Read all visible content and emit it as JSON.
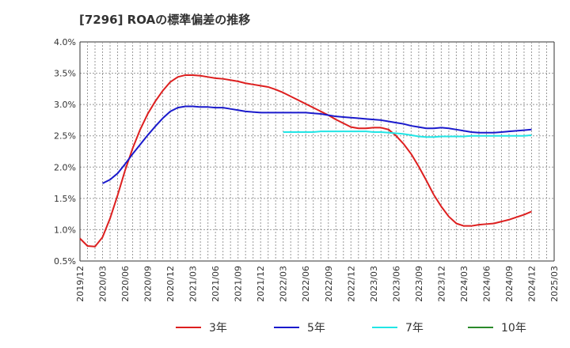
{
  "chart_data": {
    "type": "line",
    "title": "[7296]  ROAの標準偏差の推移",
    "xlabel": "",
    "ylabel": "",
    "y_range": [
      0.5,
      4.0
    ],
    "y_ticks": [
      0.5,
      1.0,
      1.5,
      2.0,
      2.5,
      3.0,
      3.5,
      4.0
    ],
    "y_tick_labels": [
      "0.5%",
      "1.0%",
      "1.5%",
      "2.0%",
      "2.5%",
      "3.0%",
      "3.5%",
      "4.0%"
    ],
    "x_range": [
      "2019/12",
      "2025/03"
    ],
    "x_tick_labels": [
      "2019/12",
      "2020/03",
      "2020/06",
      "2020/09",
      "2020/12",
      "2021/03",
      "2021/06",
      "2021/09",
      "2021/12",
      "2022/03",
      "2022/06",
      "2022/09",
      "2022/12",
      "2023/03",
      "2023/06",
      "2023/09",
      "2023/12",
      "2024/03",
      "2024/06",
      "2024/09",
      "2024/12",
      "2025/03"
    ],
    "grid": true,
    "legend_position": "bottom",
    "series": [
      {
        "name": "3年",
        "color": "#dd1f1f",
        "points": [
          [
            "2019/12",
            0.86
          ],
          [
            "2020/01",
            0.74
          ],
          [
            "2020/02",
            0.73
          ],
          [
            "2020/03",
            0.88
          ],
          [
            "2020/04",
            1.18
          ],
          [
            "2020/05",
            1.55
          ],
          [
            "2020/06",
            1.95
          ],
          [
            "2020/07",
            2.3
          ],
          [
            "2020/08",
            2.6
          ],
          [
            "2020/09",
            2.85
          ],
          [
            "2020/10",
            3.05
          ],
          [
            "2020/11",
            3.22
          ],
          [
            "2020/12",
            3.36
          ],
          [
            "2021/01",
            3.44
          ],
          [
            "2021/02",
            3.47
          ],
          [
            "2021/03",
            3.47
          ],
          [
            "2021/04",
            3.46
          ],
          [
            "2021/05",
            3.44
          ],
          [
            "2021/06",
            3.42
          ],
          [
            "2021/07",
            3.41
          ],
          [
            "2021/08",
            3.39
          ],
          [
            "2021/09",
            3.37
          ],
          [
            "2021/10",
            3.34
          ],
          [
            "2021/11",
            3.32
          ],
          [
            "2021/12",
            3.3
          ],
          [
            "2022/01",
            3.28
          ],
          [
            "2022/02",
            3.24
          ],
          [
            "2022/03",
            3.19
          ],
          [
            "2022/04",
            3.13
          ],
          [
            "2022/05",
            3.07
          ],
          [
            "2022/06",
            3.01
          ],
          [
            "2022/07",
            2.95
          ],
          [
            "2022/08",
            2.89
          ],
          [
            "2022/09",
            2.83
          ],
          [
            "2022/10",
            2.76
          ],
          [
            "2022/11",
            2.7
          ],
          [
            "2022/12",
            2.64
          ],
          [
            "2023/01",
            2.62
          ],
          [
            "2023/02",
            2.62
          ],
          [
            "2023/03",
            2.63
          ],
          [
            "2023/04",
            2.63
          ],
          [
            "2023/05",
            2.6
          ],
          [
            "2023/06",
            2.5
          ],
          [
            "2023/07",
            2.37
          ],
          [
            "2023/08",
            2.21
          ],
          [
            "2023/09",
            2.01
          ],
          [
            "2023/10",
            1.79
          ],
          [
            "2023/11",
            1.56
          ],
          [
            "2023/12",
            1.37
          ],
          [
            "2024/01",
            1.21
          ],
          [
            "2024/02",
            1.1
          ],
          [
            "2024/03",
            1.06
          ],
          [
            "2024/04",
            1.06
          ],
          [
            "2024/05",
            1.08
          ],
          [
            "2024/06",
            1.09
          ],
          [
            "2024/07",
            1.1
          ],
          [
            "2024/08",
            1.13
          ],
          [
            "2024/09",
            1.16
          ],
          [
            "2024/10",
            1.2
          ],
          [
            "2024/11",
            1.24
          ],
          [
            "2024/12",
            1.29
          ]
        ]
      },
      {
        "name": "5年",
        "color": "#1a1acc",
        "points": [
          [
            "2020/03",
            1.74
          ],
          [
            "2020/04",
            1.8
          ],
          [
            "2020/05",
            1.9
          ],
          [
            "2020/06",
            2.05
          ],
          [
            "2020/07",
            2.21
          ],
          [
            "2020/08",
            2.36
          ],
          [
            "2020/09",
            2.51
          ],
          [
            "2020/10",
            2.65
          ],
          [
            "2020/11",
            2.78
          ],
          [
            "2020/12",
            2.89
          ],
          [
            "2021/01",
            2.95
          ],
          [
            "2021/02",
            2.97
          ],
          [
            "2021/03",
            2.97
          ],
          [
            "2021/04",
            2.96
          ],
          [
            "2021/05",
            2.96
          ],
          [
            "2021/06",
            2.95
          ],
          [
            "2021/07",
            2.95
          ],
          [
            "2021/08",
            2.93
          ],
          [
            "2021/09",
            2.91
          ],
          [
            "2021/10",
            2.89
          ],
          [
            "2021/11",
            2.88
          ],
          [
            "2021/12",
            2.87
          ],
          [
            "2022/01",
            2.87
          ],
          [
            "2022/02",
            2.87
          ],
          [
            "2022/03",
            2.87
          ],
          [
            "2022/04",
            2.87
          ],
          [
            "2022/05",
            2.87
          ],
          [
            "2022/06",
            2.87
          ],
          [
            "2022/07",
            2.86
          ],
          [
            "2022/08",
            2.85
          ],
          [
            "2022/09",
            2.83
          ],
          [
            "2022/10",
            2.81
          ],
          [
            "2022/11",
            2.8
          ],
          [
            "2022/12",
            2.79
          ],
          [
            "2023/01",
            2.78
          ],
          [
            "2023/02",
            2.77
          ],
          [
            "2023/03",
            2.76
          ],
          [
            "2023/04",
            2.75
          ],
          [
            "2023/05",
            2.73
          ],
          [
            "2023/06",
            2.71
          ],
          [
            "2023/07",
            2.69
          ],
          [
            "2023/08",
            2.66
          ],
          [
            "2023/09",
            2.64
          ],
          [
            "2023/10",
            2.62
          ],
          [
            "2023/11",
            2.62
          ],
          [
            "2023/12",
            2.63
          ],
          [
            "2024/01",
            2.62
          ],
          [
            "2024/02",
            2.6
          ],
          [
            "2024/03",
            2.58
          ],
          [
            "2024/04",
            2.56
          ],
          [
            "2024/05",
            2.55
          ],
          [
            "2024/06",
            2.55
          ],
          [
            "2024/07",
            2.55
          ],
          [
            "2024/08",
            2.56
          ],
          [
            "2024/09",
            2.57
          ],
          [
            "2024/10",
            2.58
          ],
          [
            "2024/11",
            2.59
          ],
          [
            "2024/12",
            2.6
          ]
        ]
      },
      {
        "name": "7年",
        "color": "#22e5e5",
        "points": [
          [
            "2022/03",
            2.56
          ],
          [
            "2022/04",
            2.56
          ],
          [
            "2022/05",
            2.56
          ],
          [
            "2022/06",
            2.56
          ],
          [
            "2022/07",
            2.56
          ],
          [
            "2022/08",
            2.57
          ],
          [
            "2022/09",
            2.57
          ],
          [
            "2022/10",
            2.57
          ],
          [
            "2022/11",
            2.57
          ],
          [
            "2022/12",
            2.57
          ],
          [
            "2023/01",
            2.57
          ],
          [
            "2023/02",
            2.57
          ],
          [
            "2023/03",
            2.56
          ],
          [
            "2023/04",
            2.56
          ],
          [
            "2023/05",
            2.55
          ],
          [
            "2023/06",
            2.54
          ],
          [
            "2023/07",
            2.53
          ],
          [
            "2023/08",
            2.51
          ],
          [
            "2023/09",
            2.49
          ],
          [
            "2023/10",
            2.48
          ],
          [
            "2023/11",
            2.48
          ],
          [
            "2023/12",
            2.49
          ],
          [
            "2024/01",
            2.49
          ],
          [
            "2024/02",
            2.49
          ],
          [
            "2024/03",
            2.49
          ],
          [
            "2024/04",
            2.5
          ],
          [
            "2024/05",
            2.5
          ],
          [
            "2024/06",
            2.5
          ],
          [
            "2024/07",
            2.5
          ],
          [
            "2024/08",
            2.5
          ],
          [
            "2024/09",
            2.5
          ],
          [
            "2024/10",
            2.5
          ],
          [
            "2024/11",
            2.5
          ],
          [
            "2024/12",
            2.51
          ]
        ]
      },
      {
        "name": "10年",
        "color": "#2a8a2a",
        "points": []
      }
    ]
  }
}
